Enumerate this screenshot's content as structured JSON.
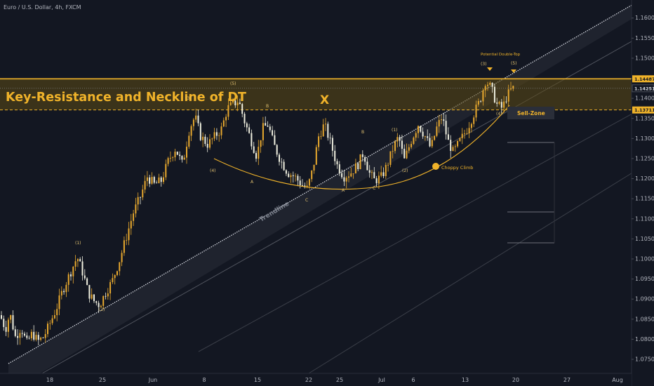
{
  "symbol_header": "Euro / U.S. Dollar, 4h, FXCM",
  "colors": {
    "background": "#131722",
    "up": "#e8a92e",
    "down": "#f0f0e0",
    "accent": "#f0b32a",
    "zone": "#5c4a14",
    "grid": "#2a2e39"
  },
  "chart_data": {
    "type": "candlestick",
    "title": "Euro / U.S. Dollar, 4h, FXCM",
    "xlabel": "",
    "ylabel": "",
    "ylim": [
      1.0715,
      1.1645
    ],
    "x_tick_labels": [
      "18",
      "25",
      "Jun",
      "8",
      "15",
      "22",
      "25",
      "Jul",
      "6",
      "13",
      "20",
      "27",
      "Aug"
    ],
    "y_tick_labels": [
      "1.16000",
      "1.15500",
      "1.15000",
      "1.14500",
      "1.14000",
      "1.13500",
      "1.13000",
      "1.12500",
      "1.12000",
      "1.11500",
      "1.11000",
      "1.10500",
      "1.10000",
      "1.09500",
      "1.09000",
      "1.08500",
      "1.08000",
      "1.07500"
    ],
    "y_ticks": [
      1.16,
      1.155,
      1.15,
      1.145,
      1.14,
      1.135,
      1.13,
      1.125,
      1.12,
      1.115,
      1.11,
      1.105,
      1.1,
      1.095,
      1.09,
      1.085,
      1.08,
      1.075
    ],
    "price_labels": [
      {
        "value": 1.14487,
        "text": "1.14487"
      },
      {
        "value": 1.14251,
        "text": "1.14251"
      },
      {
        "value": 1.13711,
        "text": "1.13711"
      }
    ],
    "zone": {
      "label": "Key-Resistance and Neckline of DT",
      "top": 1.14487,
      "bottom": 1.13711
    },
    "path": [
      [
        0,
        1.086
      ],
      [
        8,
        1.0825
      ],
      [
        14,
        1.0865
      ],
      [
        22,
        1.0805
      ],
      [
        30,
        1.083
      ],
      [
        38,
        1.079
      ],
      [
        46,
        1.0815
      ],
      [
        54,
        1.0795
      ],
      [
        62,
        1.0805
      ],
      [
        70,
        1.0835
      ],
      [
        80,
        1.0875
      ],
      [
        90,
        1.0925
      ],
      [
        100,
        1.0965
      ],
      [
        110,
        1.1005
      ],
      [
        118,
        1.0965
      ],
      [
        126,
        1.0915
      ],
      [
        134,
        1.0895
      ],
      [
        142,
        1.0885
      ],
      [
        150,
        1.0915
      ],
      [
        160,
        1.0945
      ],
      [
        170,
        1.0995
      ],
      [
        180,
        1.1055
      ],
      [
        190,
        1.1115
      ],
      [
        200,
        1.1155
      ],
      [
        210,
        1.1205
      ],
      [
        220,
        1.1185
      ],
      [
        230,
        1.1195
      ],
      [
        240,
        1.1245
      ],
      [
        250,
        1.1275
      ],
      [
        260,
        1.1235
      ],
      [
        270,
        1.1325
      ],
      [
        278,
        1.1355
      ],
      [
        286,
        1.1305
      ],
      [
        296,
        1.1285
      ],
      [
        306,
        1.1305
      ],
      [
        316,
        1.1325
      ],
      [
        324,
        1.1375
      ],
      [
        332,
        1.1385
      ],
      [
        340,
        1.1395
      ],
      [
        348,
        1.1345
      ],
      [
        356,
        1.1305
      ],
      [
        366,
        1.1255
      ],
      [
        374,
        1.1325
      ],
      [
        382,
        1.1335
      ],
      [
        390,
        1.1285
      ],
      [
        400,
        1.1245
      ],
      [
        410,
        1.1215
      ],
      [
        420,
        1.1205
      ],
      [
        430,
        1.1185
      ],
      [
        438,
        1.1175
      ],
      [
        446,
        1.1225
      ],
      [
        454,
        1.1305
      ],
      [
        462,
        1.1335
      ],
      [
        470,
        1.1295
      ],
      [
        480,
        1.1235
      ],
      [
        490,
        1.1205
      ],
      [
        500,
        1.1215
      ],
      [
        510,
        1.1235
      ],
      [
        518,
        1.1265
      ],
      [
        526,
        1.1215
      ],
      [
        534,
        1.1195
      ],
      [
        544,
        1.1205
      ],
      [
        552,
        1.1235
      ],
      [
        560,
        1.1275
      ],
      [
        568,
        1.1305
      ],
      [
        576,
        1.1245
      ],
      [
        586,
        1.1295
      ],
      [
        596,
        1.1335
      ],
      [
        606,
        1.1305
      ],
      [
        614,
        1.1275
      ],
      [
        622,
        1.1325
      ],
      [
        630,
        1.1355
      ],
      [
        638,
        1.1295
      ],
      [
        646,
        1.1265
      ],
      [
        656,
        1.1295
      ],
      [
        666,
        1.1325
      ],
      [
        676,
        1.1365
      ],
      [
        684,
        1.1395
      ],
      [
        692,
        1.1445
      ],
      [
        700,
        1.1425
      ],
      [
        708,
        1.1385
      ],
      [
        716,
        1.1375
      ],
      [
        722,
        1.1405
      ],
      [
        730,
        1.1425
      ]
    ],
    "annotations": [
      {
        "text": "X",
        "kind": "big-letter"
      },
      {
        "text": "Trendline",
        "kind": "line-label"
      },
      {
        "text": "Sell-Zone",
        "kind": "box-label"
      },
      {
        "text": "Choppy Climb",
        "kind": "dot-label"
      },
      {
        "text": "Potential Double-Top",
        "kind": "label"
      },
      {
        "text": "(1)",
        "kind": "wave"
      },
      {
        "text": "(2)",
        "kind": "wave"
      },
      {
        "text": "(3)",
        "kind": "wave"
      },
      {
        "text": "(4)",
        "kind": "wave"
      },
      {
        "text": "(5)",
        "kind": "wave"
      },
      {
        "text": "A",
        "kind": "wave"
      },
      {
        "text": "B",
        "kind": "wave"
      },
      {
        "text": "C",
        "kind": "wave"
      },
      {
        "text": "A",
        "kind": "wave"
      },
      {
        "text": "B",
        "kind": "wave"
      },
      {
        "text": "C",
        "kind": "wave"
      },
      {
        "text": "(1)",
        "kind": "wave"
      },
      {
        "text": "(2)",
        "kind": "wave"
      },
      {
        "text": "(3)",
        "kind": "wave"
      },
      {
        "text": "(4)",
        "kind": "wave"
      },
      {
        "text": "(5)",
        "kind": "wave"
      }
    ],
    "grid": false,
    "legend": "none"
  }
}
